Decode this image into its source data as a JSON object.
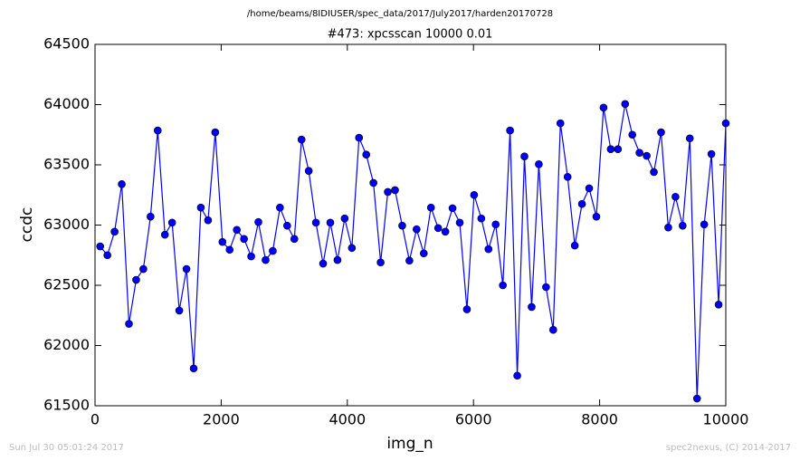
{
  "chart_data": {
    "type": "line",
    "suptitle": "/home/beams/8IDIUSER/spec_data/2017/July2017/harden20170728",
    "title": "#473: xpcsscan 10000 0.01",
    "xlabel": "img_n",
    "ylabel": "ccdc",
    "footer_left": "Sun Jul 30 05:01:24 2017",
    "footer_right": "spec2nexus, (C) 2014-2017",
    "x": [
      82,
      196,
      310,
      424,
      538,
      652,
      766,
      880,
      994,
      1108,
      1222,
      1336,
      1450,
      1564,
      1678,
      1792,
      1906,
      2020,
      2134,
      2248,
      2362,
      2476,
      2590,
      2704,
      2818,
      2932,
      3046,
      3160,
      3274,
      3388,
      3502,
      3616,
      3730,
      3844,
      3958,
      4072,
      4186,
      4300,
      4414,
      4528,
      4642,
      4756,
      4870,
      4984,
      5098,
      5212,
      5326,
      5440,
      5554,
      5668,
      5782,
      5896,
      6010,
      6124,
      6238,
      6352,
      6466,
      6580,
      6694,
      6808,
      6922,
      7036,
      7150,
      7264,
      7378,
      7492,
      7606,
      7720,
      7834,
      7948,
      8062,
      8176,
      8290,
      8404,
      8518,
      8632,
      8746,
      8860,
      8974,
      9088,
      9202,
      9316,
      9430,
      9544,
      9658,
      9772,
      9886,
      10000
    ],
    "series": [
      {
        "name": "ccdc",
        "color": "#0000ff",
        "marker_edge": "#000000",
        "values": [
          62823,
          62750,
          62945,
          63340,
          62180,
          62545,
          62635,
          63070,
          63785,
          62920,
          63020,
          62290,
          62635,
          61810,
          63145,
          63040,
          63770,
          62860,
          62795,
          62960,
          62885,
          62740,
          63025,
          62710,
          62785,
          63145,
          62995,
          62885,
          63710,
          63450,
          63020,
          62680,
          63020,
          62710,
          63055,
          62810,
          63725,
          63585,
          63350,
          62690,
          63275,
          63290,
          62995,
          62705,
          62965,
          62765,
          63145,
          62975,
          62945,
          63140,
          63020,
          62300,
          63250,
          63055,
          62800,
          63005,
          62500,
          63785,
          61750,
          63570,
          62320,
          63505,
          62485,
          62130,
          63845,
          63400,
          62830,
          63175,
          63305,
          63070,
          63975,
          63630,
          63630,
          64005,
          63750,
          63600,
          63575,
          63440,
          63770,
          62980,
          63235,
          62995,
          63720,
          61560,
          63005,
          63590,
          62340,
          63845
        ]
      }
    ],
    "xlim": [
      0,
      10000
    ],
    "xticks": [
      0,
      2000,
      4000,
      6000,
      8000,
      10000
    ],
    "ylim": [
      61500,
      64500
    ],
    "yticks": [
      61500,
      62000,
      62500,
      63000,
      63500,
      64000,
      64500
    ],
    "grid": false
  }
}
